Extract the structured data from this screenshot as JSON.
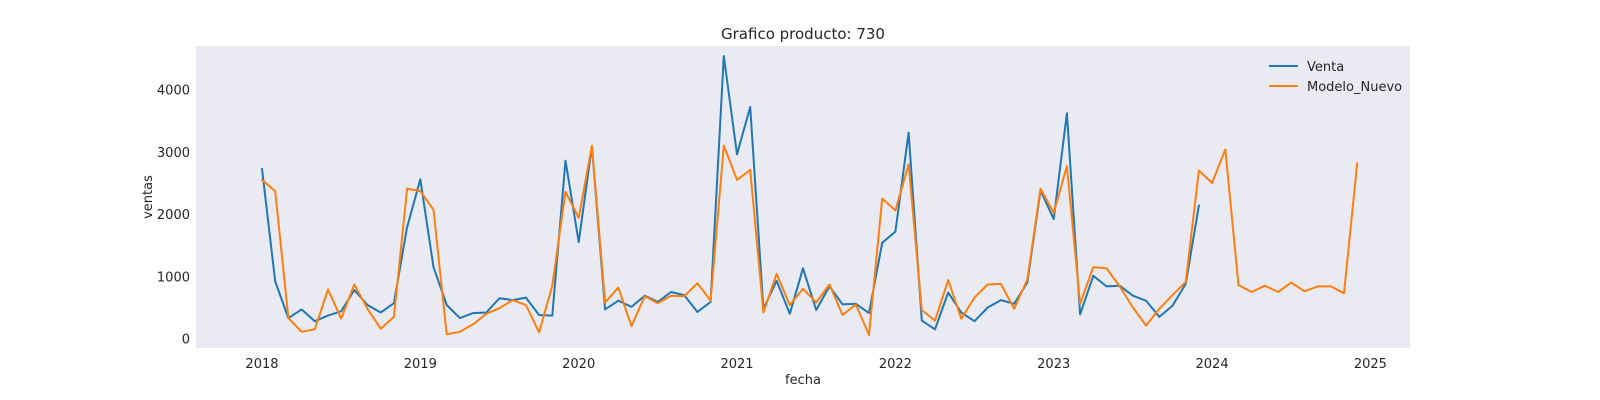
{
  "chart_data": {
    "type": "line",
    "title": "Grafico producto: 730",
    "xlabel": "fecha",
    "ylabel": "ventas",
    "ylim": [
      -150,
      4700
    ],
    "xlim": [
      "2017-08-01",
      "2025-04-01"
    ],
    "x_ticks": [
      "2018",
      "2019",
      "2020",
      "2021",
      "2022",
      "2023",
      "2024",
      "2025"
    ],
    "y_ticks": [
      0,
      1000,
      2000,
      3000,
      4000
    ],
    "grid": false,
    "background": "#eaeaf2",
    "legend_position": "top-right",
    "series": [
      {
        "name": "Venta",
        "color": "#1f77b4",
        "x_start": "2018-01",
        "values": [
          2730,
          920,
          330,
          470,
          280,
          370,
          440,
          780,
          540,
          420,
          570,
          1790,
          2560,
          1150,
          540,
          330,
          410,
          420,
          650,
          620,
          660,
          380,
          370,
          2860,
          1550,
          3090,
          470,
          610,
          510,
          690,
          590,
          750,
          700,
          430,
          590,
          4540,
          2960,
          3720,
          480,
          930,
          400,
          1130,
          460,
          840,
          550,
          560,
          410,
          1540,
          1720,
          3310,
          290,
          150,
          740,
          420,
          280,
          500,
          620,
          560,
          900,
          2380,
          1920,
          3620,
          390,
          1010,
          840,
          850,
          690,
          610,
          350,
          530,
          880,
          2140
        ]
      },
      {
        "name": "Modelo_Nuevo",
        "color": "#ff7f0e",
        "x_start": "2018-01",
        "values": [
          2550,
          2370,
          330,
          110,
          150,
          790,
          320,
          870,
          480,
          160,
          350,
          2410,
          2370,
          2070,
          70,
          110,
          230,
          400,
          490,
          620,
          540,
          100,
          850,
          2360,
          1940,
          3100,
          580,
          820,
          200,
          680,
          570,
          690,
          680,
          890,
          610,
          3100,
          2550,
          2710,
          420,
          1040,
          540,
          800,
          580,
          870,
          380,
          550,
          60,
          2250,
          2060,
          2800,
          460,
          290,
          940,
          320,
          660,
          870,
          880,
          480,
          950,
          2410,
          2020,
          2770,
          560,
          1150,
          1130,
          840,
          500,
          210,
          480,
          700,
          910,
          2700,
          2500,
          3040,
          860,
          750,
          850,
          750,
          900,
          760,
          840,
          840,
          730,
          2820
        ]
      }
    ]
  }
}
